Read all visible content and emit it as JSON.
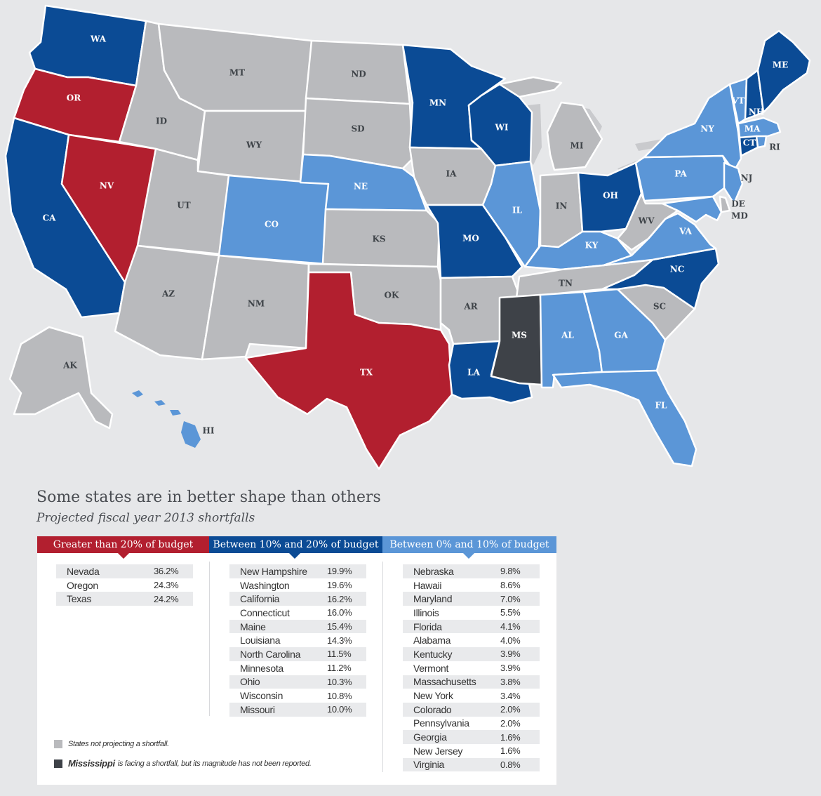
{
  "colors": {
    "over20": "#b21f2f",
    "tenTo20": "#0b4b95",
    "zeroTo10": "#5b96d7",
    "none": "#b9babd",
    "unreported": "#3e4248",
    "ocean": "#e6e7e9"
  },
  "title": "Some states are in better shape than others",
  "subtitle": "Projected fiscal year 2013 shortfalls",
  "categories": [
    {
      "label": "Greater than 20% of budget",
      "color": "#b21f2f",
      "states": [
        {
          "name": "Nevada",
          "pct": "36.2%"
        },
        {
          "name": "Oregon",
          "pct": "24.3%"
        },
        {
          "name": "Texas",
          "pct": "24.2%"
        }
      ]
    },
    {
      "label": "Between 10% and 20% of budget",
      "color": "#0b4b95",
      "states": [
        {
          "name": "New Hampshire",
          "pct": "19.9%"
        },
        {
          "name": "Washington",
          "pct": "19.6%"
        },
        {
          "name": "California",
          "pct": "16.2%"
        },
        {
          "name": "Connecticut",
          "pct": "16.0%"
        },
        {
          "name": "Maine",
          "pct": "15.4%"
        },
        {
          "name": "Louisiana",
          "pct": "14.3%"
        },
        {
          "name": "North Carolina",
          "pct": "11.5%"
        },
        {
          "name": "Minnesota",
          "pct": "11.2%"
        },
        {
          "name": "Ohio",
          "pct": "10.3%"
        },
        {
          "name": "Wisconsin",
          "pct": "10.8%"
        },
        {
          "name": "Missouri",
          "pct": "10.0%"
        }
      ]
    },
    {
      "label": "Between 0% and 10% of budget",
      "color": "#5b96d7",
      "states": [
        {
          "name": "Nebraska",
          "pct": "9.8%"
        },
        {
          "name": "Hawaii",
          "pct": "8.6%"
        },
        {
          "name": "Maryland",
          "pct": "7.0%"
        },
        {
          "name": "Illinois",
          "pct": "5.5%"
        },
        {
          "name": "Florida",
          "pct": "4.1%"
        },
        {
          "name": "Alabama",
          "pct": "4.0%"
        },
        {
          "name": "Kentucky",
          "pct": "3.9%"
        },
        {
          "name": "Vermont",
          "pct": "3.9%"
        },
        {
          "name": "Massachusetts",
          "pct": "3.8%"
        },
        {
          "name": "New York",
          "pct": "3.4%"
        },
        {
          "name": "Colorado",
          "pct": "2.0%"
        },
        {
          "name": "Pennsylvania",
          "pct": "2.0%"
        },
        {
          "name": "Georgia",
          "pct": "1.6%"
        },
        {
          "name": "New Jersey",
          "pct": "1.6%"
        },
        {
          "name": "Virginia",
          "pct": "0.8%"
        }
      ]
    }
  ],
  "legend": {
    "none_text": "States not projecting a shortfall.",
    "ms_bold": "Mississippi",
    "ms_text": "is facing a shortfall, but its magnitude has not been reported."
  },
  "state_labels": {
    "WA": "WA",
    "OR": "OR",
    "CA": "CA",
    "NV": "NV",
    "ID": "ID",
    "MT": "MT",
    "WY": "WY",
    "UT": "UT",
    "CO": "CO",
    "AZ": "AZ",
    "NM": "NM",
    "ND": "ND",
    "SD": "SD",
    "NE": "NE",
    "KS": "KS",
    "OK": "OK",
    "TX": "TX",
    "MN": "MN",
    "IA": "IA",
    "MO": "MO",
    "AR": "AR",
    "LA": "LA",
    "WI": "WI",
    "IL": "IL",
    "MI": "MI",
    "IN": "IN",
    "OH": "OH",
    "KY": "KY",
    "TN": "TN",
    "MS": "MS",
    "AL": "AL",
    "GA": "GA",
    "FL": "FL",
    "SC": "SC",
    "NC": "NC",
    "VA": "VA",
    "WV": "WV",
    "PA": "PA",
    "NY": "NY",
    "VT": "VT",
    "NH": "NH",
    "ME": "ME",
    "MA": "MA",
    "CT": "CT",
    "RI": "RI",
    "NJ": "NJ",
    "DE": "DE",
    "MD": "MD",
    "AK": "AK",
    "HI": "HI"
  }
}
